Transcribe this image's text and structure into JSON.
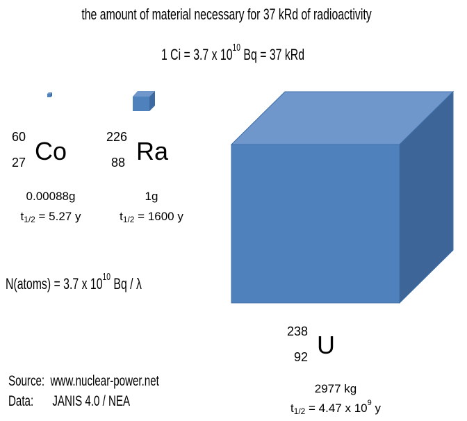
{
  "title": "the amount of material necessary for 37 kRd of radioactivity",
  "equation": {
    "left": "1 Ci = 3.7 x 10",
    "exponent": "10",
    "right": "Bq = 37 kRd"
  },
  "isotopes": [
    {
      "mass_number": "60",
      "atomic_number": "27",
      "symbol": "Co",
      "amount": "0.00088g",
      "half_life": {
        "symbol": "t",
        "subscript": "1/2",
        "text": "= 5.27 y"
      }
    },
    {
      "mass_number": "226",
      "atomic_number": "88",
      "symbol": "Ra",
      "amount": "1g",
      "half_life": {
        "symbol": "t",
        "subscript": "1/2",
        "text": "= 1600 y"
      }
    },
    {
      "mass_number": "238",
      "atomic_number": "92",
      "symbol": "U",
      "amount": "2977 kg",
      "half_life": {
        "symbol": "t",
        "subscript": "1/2",
        "text": "= 4.47 x 10",
        "exponent": "9",
        "unit": "y"
      }
    }
  ],
  "formula": {
    "left": "N(atoms) = 3.7 x 10",
    "exponent": "10",
    "right": "Bq / λ"
  },
  "source": {
    "label": "Source:",
    "value": "www.nuclear-power.net"
  },
  "data": {
    "label": "Data:",
    "value": "JANIS 4.0 / NEA"
  }
}
